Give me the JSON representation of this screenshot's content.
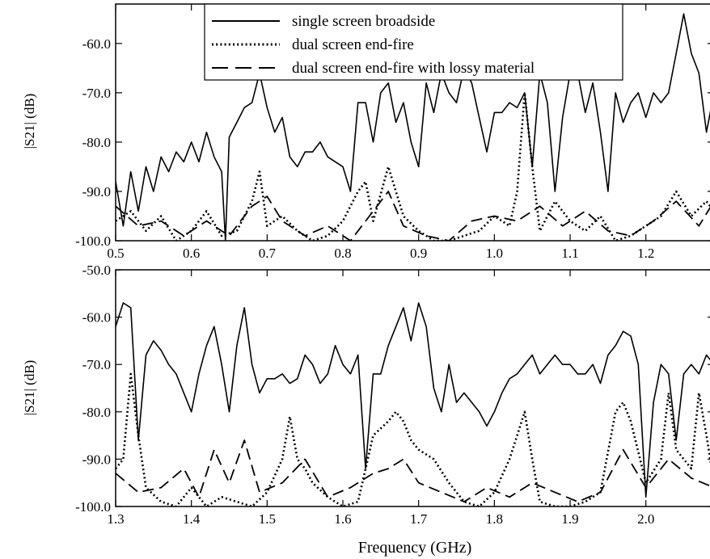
{
  "chart_data": [
    {
      "type": "line",
      "xlabel": "",
      "ylabel": "|S21| (dB)",
      "xlim": [
        0.5,
        1.29
      ],
      "ylim": [
        -100.0,
        -52.0
      ],
      "xticks": [
        "0.5",
        "0.6",
        "0.7",
        "0.8",
        "0.9",
        "1.0",
        "1.1",
        "1.2"
      ],
      "yticks": [
        "-60.0",
        "-70.0",
        "-80.0",
        "-90.0",
        "-100.0"
      ],
      "legend_position": "top-center",
      "grid": false,
      "series": [
        {
          "name": "single screen broadside",
          "style": "solid",
          "x": [
            0.5,
            0.51,
            0.52,
            0.53,
            0.54,
            0.55,
            0.56,
            0.57,
            0.58,
            0.59,
            0.6,
            0.61,
            0.62,
            0.63,
            0.64,
            0.645,
            0.65,
            0.66,
            0.67,
            0.68,
            0.69,
            0.7,
            0.71,
            0.72,
            0.73,
            0.74,
            0.75,
            0.76,
            0.77,
            0.78,
            0.79,
            0.8,
            0.81,
            0.82,
            0.83,
            0.84,
            0.85,
            0.86,
            0.87,
            0.88,
            0.89,
            0.9,
            0.91,
            0.92,
            0.93,
            0.94,
            0.95,
            0.96,
            0.97,
            0.98,
            0.99,
            1.0,
            1.01,
            1.02,
            1.03,
            1.04,
            1.05,
            1.06,
            1.07,
            1.08,
            1.09,
            1.1,
            1.11,
            1.12,
            1.13,
            1.14,
            1.15,
            1.16,
            1.17,
            1.18,
            1.19,
            1.2,
            1.21,
            1.22,
            1.23,
            1.24,
            1.25,
            1.26,
            1.27,
            1.28,
            1.29
          ],
          "y": [
            -88,
            -97,
            -86,
            -94,
            -85,
            -90,
            -83,
            -86,
            -82,
            -84,
            -80,
            -84,
            -78,
            -83,
            -86,
            -100,
            -79,
            -76,
            -73,
            -72,
            -66,
            -73,
            -78,
            -75,
            -83,
            -85,
            -82,
            -82,
            -80,
            -83,
            -84,
            -85,
            -90,
            -72,
            -72,
            -80,
            -70,
            -68,
            -76,
            -72,
            -80,
            -85,
            -68,
            -74,
            -66,
            -70,
            -72,
            -65,
            -68,
            -75,
            -82,
            -74,
            -74,
            -72,
            -73,
            -70,
            -85,
            -66,
            -72,
            -90,
            -75,
            -66,
            -66,
            -74,
            -68,
            -78,
            -90,
            -70,
            -76,
            -72,
            -70,
            -75,
            -70,
            -72,
            -70,
            -62,
            -54,
            -62,
            -66,
            -78,
            -70
          ]
        },
        {
          "name": "dual screen end-fire",
          "style": "dotted",
          "x": [
            0.5,
            0.52,
            0.54,
            0.56,
            0.58,
            0.6,
            0.62,
            0.64,
            0.66,
            0.68,
            0.69,
            0.7,
            0.72,
            0.74,
            0.76,
            0.78,
            0.8,
            0.82,
            0.83,
            0.84,
            0.86,
            0.88,
            0.9,
            0.92,
            0.94,
            0.96,
            0.98,
            1.0,
            1.02,
            1.03,
            1.04,
            1.05,
            1.06,
            1.08,
            1.1,
            1.12,
            1.14,
            1.16,
            1.18,
            1.2,
            1.22,
            1.24,
            1.26,
            1.28,
            1.29
          ],
          "y": [
            -96,
            -94,
            -98,
            -95,
            -100,
            -98,
            -94,
            -99,
            -98,
            -92,
            -86,
            -97,
            -95,
            -98,
            -100,
            -99,
            -96,
            -90,
            -88,
            -96,
            -85,
            -95,
            -98,
            -100,
            -100,
            -99,
            -98,
            -95,
            -97,
            -90,
            -70,
            -85,
            -98,
            -92,
            -96,
            -98,
            -95,
            -100,
            -99,
            -97,
            -95,
            -90,
            -95,
            -92,
            -94
          ]
        },
        {
          "name": "dual screen end-fire with lossy material",
          "style": "dashed",
          "x": [
            0.5,
            0.53,
            0.56,
            0.59,
            0.62,
            0.65,
            0.68,
            0.7,
            0.72,
            0.75,
            0.78,
            0.81,
            0.84,
            0.86,
            0.88,
            0.91,
            0.94,
            0.97,
            1.0,
            1.03,
            1.06,
            1.09,
            1.12,
            1.15,
            1.18,
            1.21,
            1.24,
            1.27,
            1.29
          ],
          "y": [
            -93,
            -97,
            -96,
            -99,
            -96,
            -99,
            -93,
            -91,
            -96,
            -99,
            -97,
            -100,
            -94,
            -90,
            -97,
            -99,
            -100,
            -96,
            -95,
            -96,
            -93,
            -97,
            -94,
            -98,
            -99,
            -96,
            -92,
            -97,
            -92
          ]
        }
      ]
    },
    {
      "type": "line",
      "xlabel": "Frequency (GHz)",
      "ylabel": "|S21| (dB)",
      "xlim": [
        1.3,
        2.09
      ],
      "ylim": [
        -100.0,
        -50.0
      ],
      "xticks": [
        "1.3",
        "1.4",
        "1.5",
        "1.6",
        "1.7",
        "1.8",
        "1.9",
        "2.0"
      ],
      "yticks": [
        "-50.0",
        "-60.0",
        "-70.0",
        "-80.0",
        "-90.0",
        "-100.0"
      ],
      "grid": false,
      "series": [
        {
          "name": "single screen broadside",
          "style": "solid",
          "x": [
            1.3,
            1.31,
            1.32,
            1.325,
            1.33,
            1.34,
            1.35,
            1.36,
            1.37,
            1.38,
            1.39,
            1.4,
            1.41,
            1.42,
            1.43,
            1.44,
            1.45,
            1.46,
            1.47,
            1.48,
            1.49,
            1.5,
            1.51,
            1.52,
            1.53,
            1.54,
            1.55,
            1.56,
            1.57,
            1.58,
            1.59,
            1.6,
            1.61,
            1.62,
            1.63,
            1.64,
            1.65,
            1.66,
            1.67,
            1.68,
            1.69,
            1.7,
            1.71,
            1.72,
            1.73,
            1.74,
            1.75,
            1.76,
            1.77,
            1.78,
            1.79,
            1.8,
            1.81,
            1.82,
            1.83,
            1.84,
            1.85,
            1.86,
            1.87,
            1.88,
            1.89,
            1.9,
            1.91,
            1.92,
            1.93,
            1.94,
            1.95,
            1.96,
            1.97,
            1.98,
            1.99,
            2.0,
            2.01,
            2.02,
            2.03,
            2.04,
            2.05,
            2.06,
            2.07,
            2.08,
            2.09
          ],
          "y": [
            -62,
            -57,
            -58,
            -72,
            -86,
            -68,
            -65,
            -67,
            -70,
            -72,
            -76,
            -80,
            -72,
            -66,
            -62,
            -70,
            -80,
            -66,
            -58,
            -70,
            -76,
            -73,
            -73,
            -72,
            -74,
            -73,
            -68,
            -70,
            -74,
            -72,
            -66,
            -70,
            -72,
            -68,
            -92,
            -72,
            -72,
            -66,
            -62,
            -58,
            -65,
            -57,
            -62,
            -75,
            -80,
            -70,
            -78,
            -76,
            -78,
            -80,
            -83,
            -80,
            -76,
            -73,
            -72,
            -70,
            -68,
            -72,
            -70,
            -68,
            -70,
            -70,
            -72,
            -72,
            -70,
            -74,
            -68,
            -66,
            -63,
            -64,
            -70,
            -98,
            -78,
            -70,
            -72,
            -86,
            -72,
            -70,
            -72,
            -68,
            -70
          ]
        },
        {
          "name": "dual screen end-fire",
          "style": "dotted",
          "x": [
            1.3,
            1.31,
            1.32,
            1.33,
            1.34,
            1.36,
            1.38,
            1.4,
            1.42,
            1.44,
            1.46,
            1.48,
            1.5,
            1.52,
            1.53,
            1.54,
            1.55,
            1.56,
            1.58,
            1.6,
            1.62,
            1.64,
            1.66,
            1.67,
            1.68,
            1.69,
            1.7,
            1.72,
            1.74,
            1.76,
            1.78,
            1.8,
            1.82,
            1.83,
            1.84,
            1.85,
            1.86,
            1.88,
            1.9,
            1.92,
            1.94,
            1.96,
            1.97,
            1.98,
            2.0,
            2.02,
            2.03,
            2.04,
            2.06,
            2.07,
            2.08,
            2.09
          ],
          "y": [
            -92,
            -90,
            -72,
            -85,
            -96,
            -99,
            -100,
            -96,
            -100,
            -98,
            -99,
            -100,
            -97,
            -90,
            -81,
            -90,
            -92,
            -95,
            -98,
            -100,
            -99,
            -85,
            -82,
            -80,
            -82,
            -86,
            -88,
            -90,
            -95,
            -99,
            -100,
            -97,
            -90,
            -85,
            -80,
            -90,
            -99,
            -100,
            -100,
            -99,
            -97,
            -80,
            -78,
            -82,
            -95,
            -90,
            -76,
            -88,
            -92,
            -76,
            -85,
            -95
          ]
        },
        {
          "name": "dual screen end-fire with lossy material",
          "style": "dashed",
          "x": [
            1.3,
            1.33,
            1.36,
            1.39,
            1.41,
            1.43,
            1.45,
            1.47,
            1.49,
            1.52,
            1.55,
            1.58,
            1.61,
            1.64,
            1.66,
            1.68,
            1.7,
            1.73,
            1.76,
            1.79,
            1.82,
            1.85,
            1.88,
            1.91,
            1.94,
            1.97,
            2.0,
            2.03,
            2.06,
            2.09
          ],
          "y": [
            -93,
            -97,
            -96,
            -92,
            -98,
            -88,
            -95,
            -86,
            -97,
            -95,
            -90,
            -98,
            -96,
            -93,
            -92,
            -90,
            -95,
            -97,
            -99,
            -96,
            -98,
            -95,
            -97,
            -99,
            -97,
            -88,
            -96,
            -90,
            -94,
            -96
          ]
        }
      ]
    }
  ]
}
